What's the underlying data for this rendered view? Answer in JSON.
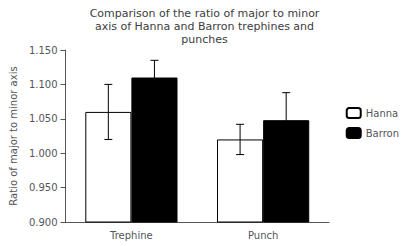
{
  "chart_data": {
    "type": "bar",
    "title": "Comparison of the ratio of major to minor\naxis of Hanna and Barron trephines and\npunches",
    "ylabel": "Ratio of major to minor axis",
    "categories": [
      "Trephine",
      "Punch"
    ],
    "series": [
      {
        "name": "Hanna",
        "color": "white",
        "values": [
          1.06,
          1.02
        ],
        "errors": [
          0.04,
          0.022
        ]
      },
      {
        "name": "Barron",
        "color": "black",
        "values": [
          1.11,
          1.048
        ],
        "errors": [
          0.025,
          0.04
        ]
      }
    ],
    "ylim": [
      0.9,
      1.15
    ],
    "yticks": [
      {
        "value": 0.9,
        "label": "0.900"
      },
      {
        "value": 0.95,
        "label": "0.950"
      },
      {
        "value": 1.0,
        "label": "1.000"
      },
      {
        "value": 1.05,
        "label": "1.050"
      },
      {
        "value": 1.1,
        "label": "1.100"
      },
      {
        "value": 1.15,
        "label": "1.150"
      }
    ],
    "grid": false,
    "legend": "right"
  }
}
